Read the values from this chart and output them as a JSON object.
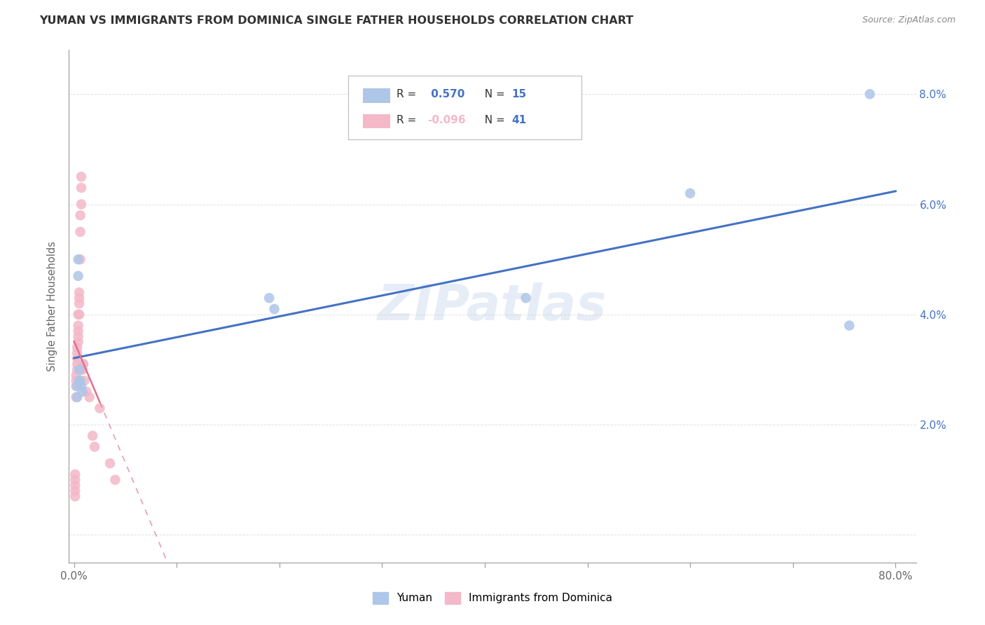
{
  "title": "YUMAN VS IMMIGRANTS FROM DOMINICA SINGLE FATHER HOUSEHOLDS CORRELATION CHART",
  "source": "Source: ZipAtlas.com",
  "ylabel": "Single Father Households",
  "x_ticks": [
    0.0,
    0.1,
    0.2,
    0.3,
    0.4,
    0.5,
    0.6,
    0.7,
    0.8
  ],
  "x_tick_labels_show": [
    "0.0%",
    "",
    "",
    "",
    "",
    "",
    "",
    "",
    "80.0%"
  ],
  "y_ticks": [
    0.0,
    0.02,
    0.04,
    0.06,
    0.08
  ],
  "y_tick_labels": [
    "",
    "2.0%",
    "4.0%",
    "6.0%",
    "8.0%"
  ],
  "yuman_x": [
    0.003,
    0.003,
    0.004,
    0.004,
    0.005,
    0.005,
    0.006,
    0.007,
    0.008,
    0.19,
    0.195,
    0.44,
    0.6,
    0.755,
    0.775
  ],
  "yuman_y": [
    0.025,
    0.027,
    0.05,
    0.047,
    0.03,
    0.028,
    0.028,
    0.027,
    0.026,
    0.043,
    0.041,
    0.043,
    0.062,
    0.038,
    0.08
  ],
  "dominica_x": [
    0.001,
    0.001,
    0.001,
    0.001,
    0.001,
    0.002,
    0.002,
    0.002,
    0.002,
    0.003,
    0.003,
    0.003,
    0.003,
    0.003,
    0.004,
    0.004,
    0.004,
    0.004,
    0.004,
    0.005,
    0.005,
    0.005,
    0.005,
    0.006,
    0.006,
    0.006,
    0.007,
    0.007,
    0.007,
    0.008,
    0.008,
    0.009,
    0.009,
    0.01,
    0.012,
    0.015,
    0.018,
    0.02,
    0.025,
    0.035,
    0.04
  ],
  "dominica_y": [
    0.007,
    0.008,
    0.009,
    0.01,
    0.011,
    0.025,
    0.027,
    0.028,
    0.029,
    0.03,
    0.031,
    0.032,
    0.033,
    0.034,
    0.035,
    0.036,
    0.037,
    0.038,
    0.04,
    0.04,
    0.042,
    0.043,
    0.044,
    0.05,
    0.055,
    0.058,
    0.06,
    0.063,
    0.065,
    0.03,
    0.03,
    0.031,
    0.031,
    0.028,
    0.026,
    0.025,
    0.018,
    0.016,
    0.023,
    0.013,
    0.01
  ],
  "yuman_color": "#aec6e8",
  "dominica_color": "#f4b8c8",
  "yuman_line_color": "#4472c4",
  "dominica_line_color": "#e07090",
  "dominica_line_color_solid": "#e07090",
  "R_yuman": 0.57,
  "N_yuman": 15,
  "R_dominica": -0.096,
  "N_dominica": 41,
  "legend_label_1": "Yuman",
  "legend_label_2": "Immigrants from Dominica",
  "watermark": "ZIPatlas",
  "background_color": "#ffffff",
  "grid_color": "#cccccc"
}
